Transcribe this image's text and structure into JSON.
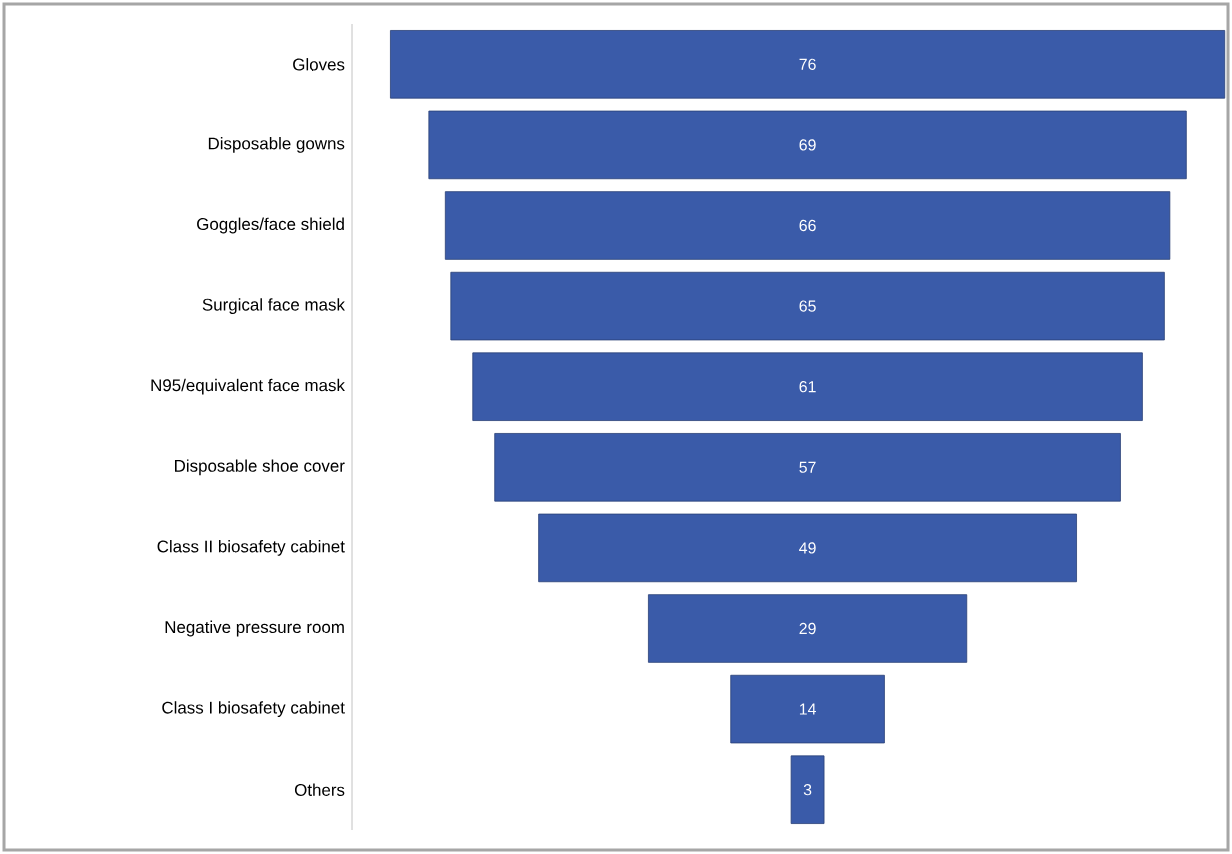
{
  "chart_data": {
    "type": "other",
    "categories": [
      "Gloves",
      "Disposable gowns",
      "Goggles/face shield",
      "Surgical face mask",
      "N95/equivalent face mask",
      "Disposable shoe cover",
      "Class II biosafety cabinet",
      "Negative pressure room",
      "Class I biosafety cabinet",
      "Others"
    ],
    "values": [
      76,
      69,
      66,
      65,
      61,
      57,
      49,
      29,
      14,
      3
    ],
    "color": "#3a5ba9",
    "data_labels": true
  }
}
